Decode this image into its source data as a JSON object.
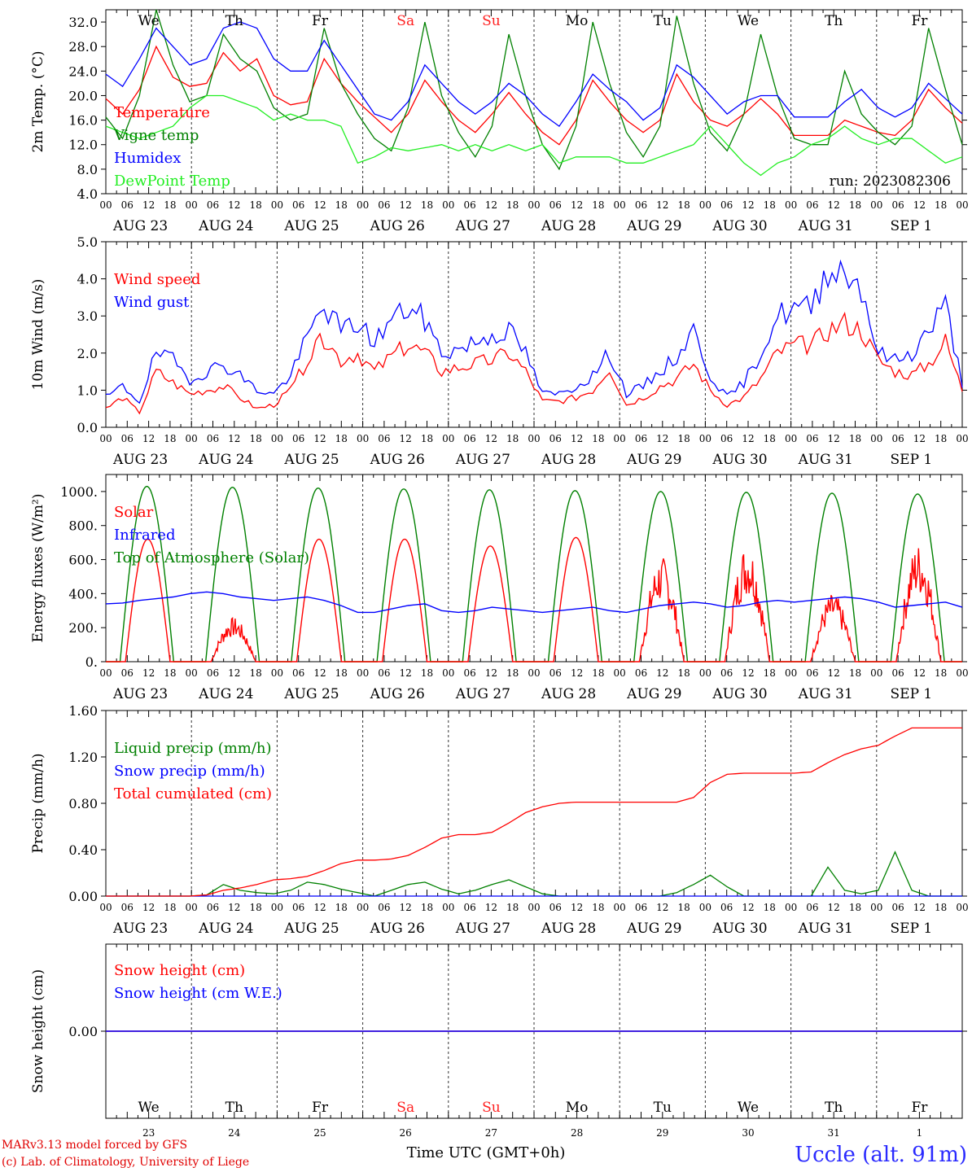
{
  "footer": {
    "model": "MARv3.13 model forced by GFS",
    "credit": "(c) Lab. of Climatology, University of Liege",
    "time_axis": "Time UTC (GMT+0h)",
    "station": "Uccle (alt. 91m)"
  },
  "days": {
    "dates": [
      "AUG 23",
      "AUG 24",
      "AUG 25",
      "AUG 26",
      "AUG 27",
      "AUG 28",
      "AUG 29",
      "AUG 30",
      "AUG 31",
      "SEP  1"
    ],
    "weekdays": [
      "We",
      "Th",
      "Fr",
      "Sa",
      "Su",
      "Mo",
      "Tu",
      "We",
      "Th",
      "Fr"
    ],
    "weekday_colors": [
      "#000000",
      "#000000",
      "#000000",
      "#ff2020",
      "#ff2020",
      "#000000",
      "#000000",
      "#000000",
      "#000000",
      "#000000"
    ],
    "day_numbers": [
      "23",
      "24",
      "25",
      "26",
      "27",
      "28",
      "29",
      "30",
      "31",
      "1"
    ],
    "hour_ticks": [
      "00",
      "06",
      "12",
      "18"
    ],
    "end_tick": "00"
  },
  "chart_data": [
    {
      "type": "line",
      "ylabel": "2m Temp. (°C)",
      "ylim": [
        4,
        34
      ],
      "yticks": [
        "4.0",
        "8.0",
        "12.0",
        "16.0",
        "20.0",
        "24.0",
        "28.0",
        "32.0"
      ],
      "annotation": "run: 2023082306",
      "series": [
        {
          "name": "Temperature",
          "color": "#ff0000",
          "values": [
            19.5,
            17,
            21,
            28,
            23,
            21.5,
            22,
            27,
            24,
            26,
            20,
            18.5,
            19,
            26,
            22,
            19,
            16.5,
            14,
            17,
            22.5,
            19,
            16,
            14,
            17,
            20.5,
            17,
            14,
            12,
            16,
            22.5,
            19,
            16,
            14,
            16,
            23.5,
            19,
            16,
            15,
            17,
            19.5,
            17,
            13.5,
            13.5,
            13.5,
            16,
            15,
            14,
            13.5,
            16,
            21,
            18,
            15.5
          ]
        },
        {
          "name": "Vigne temp",
          "color": "#008000",
          "values": [
            16.5,
            13,
            20,
            34,
            25,
            19,
            20,
            30,
            26,
            24,
            18,
            16,
            17,
            31,
            22,
            17,
            13,
            11,
            18,
            32,
            20,
            14,
            10,
            15,
            30,
            20,
            12,
            8,
            15,
            32,
            22,
            14,
            10,
            15,
            33,
            22,
            14,
            11,
            17,
            30,
            20,
            13,
            12,
            12,
            24,
            17,
            14,
            12,
            15,
            31,
            21,
            12
          ]
        },
        {
          "name": "Humidex",
          "color": "#0000ff",
          "values": [
            23.5,
            21.5,
            26,
            31,
            28,
            25,
            26,
            31,
            32,
            31,
            26,
            24,
            24,
            29,
            25,
            21,
            17,
            16,
            19,
            25,
            22,
            19,
            17,
            19,
            22,
            20,
            17,
            15,
            19,
            23.5,
            21,
            19,
            16,
            18,
            25,
            23,
            20,
            17,
            19,
            20,
            20,
            16.5,
            16.5,
            16.5,
            19,
            21,
            18,
            16.5,
            18,
            22,
            19.5,
            17
          ]
        },
        {
          "name": "DewPoint Temp",
          "color": "#22ee22",
          "values": [
            15,
            14,
            13,
            14,
            15,
            18,
            20,
            20,
            19,
            18,
            16,
            17,
            16,
            16,
            15,
            9,
            10,
            11.5,
            11,
            11.5,
            12,
            11,
            12,
            11,
            12,
            11,
            12,
            9,
            10,
            10,
            10,
            9,
            9,
            10,
            11,
            12,
            15,
            12,
            9,
            7,
            9,
            10,
            12,
            13,
            15,
            13,
            12,
            13,
            13,
            11,
            9,
            10
          ]
        }
      ]
    },
    {
      "type": "line",
      "ylabel": "10m Wind (m/s)",
      "ylim": [
        0,
        5
      ],
      "yticks": [
        "0.0",
        "1.0",
        "2.0",
        "3.0",
        "4.0",
        "5.0"
      ],
      "series": [
        {
          "name": "Wind speed",
          "color": "#ff0000",
          "values": [
            0.5,
            0.8,
            0.4,
            1.5,
            1.2,
            0.9,
            1.0,
            1.1,
            0.8,
            0.5,
            0.6,
            1.0,
            1.8,
            2.4,
            1.8,
            2.0,
            1.5,
            1.9,
            2.2,
            2.0,
            1.5,
            1.6,
            1.7,
            1.8,
            2.0,
            1.5,
            0.7,
            0.7,
            0.8,
            1.0,
            1.6,
            0.6,
            0.8,
            1.1,
            1.3,
            1.7,
            1.0,
            0.6,
            0.8,
            1.3,
            2.0,
            2.2,
            2.2,
            2.6,
            2.8,
            2.6,
            1.8,
            1.5,
            1.4,
            1.7,
            2.3,
            1.0
          ]
        },
        {
          "name": "Wind gust",
          "color": "#0000ff",
          "values": [
            0.8,
            1.1,
            0.7,
            2.0,
            1.8,
            1.3,
            1.5,
            1.7,
            1.4,
            1.0,
            0.9,
            1.4,
            2.4,
            3.3,
            2.6,
            2.8,
            2.3,
            2.9,
            3.2,
            2.9,
            2.0,
            2.1,
            2.3,
            2.5,
            2.6,
            2.0,
            0.9,
            0.9,
            1.1,
            1.4,
            2.0,
            0.9,
            1.1,
            1.5,
            1.9,
            2.6,
            1.4,
            0.8,
            1.2,
            2.0,
            3.0,
            3.2,
            3.2,
            4.3,
            4.2,
            3.8,
            2.0,
            1.8,
            2.0,
            2.6,
            3.3,
            1.2
          ]
        }
      ]
    },
    {
      "type": "line",
      "ylabel": "Energy fluxes (W/m²)",
      "ylim": [
        0,
        1100
      ],
      "yticks": [
        "0.",
        "200.",
        "400.",
        "600.",
        "800.",
        "1000."
      ],
      "series": [
        {
          "name": "Solar",
          "color": "#ff0000",
          "day_peaks": [
            720,
            260,
            720,
            720,
            680,
            730,
            620,
            700,
            400,
            700
          ]
        },
        {
          "name": "Infrared",
          "color": "#0000ff",
          "values": [
            340,
            345,
            360,
            370,
            380,
            400,
            410,
            400,
            380,
            370,
            360,
            370,
            380,
            360,
            330,
            290,
            290,
            310,
            330,
            340,
            300,
            290,
            300,
            320,
            310,
            300,
            290,
            300,
            310,
            320,
            300,
            290,
            310,
            330,
            340,
            350,
            340,
            320,
            330,
            350,
            360,
            350,
            360,
            370,
            380,
            370,
            350,
            320,
            330,
            340,
            350,
            320
          ]
        },
        {
          "name": "Top of Atmosphere (Solar)",
          "color": "#008000",
          "day_peaks": [
            1030,
            1025,
            1020,
            1015,
            1010,
            1005,
            1000,
            995,
            990,
            985
          ]
        }
      ]
    },
    {
      "type": "line",
      "ylabel": "Precip (mm/h)",
      "ylim": [
        0,
        1.6
      ],
      "yticks": [
        "0.00",
        "0.40",
        "0.80",
        "1.20",
        "1.60"
      ],
      "series": [
        {
          "name": "Liquid precip (mm/h)",
          "color": "#008000",
          "values": [
            0,
            0,
            0,
            0,
            0,
            0,
            0.01,
            0.1,
            0.05,
            0.03,
            0.02,
            0.05,
            0.12,
            0.1,
            0.06,
            0.03,
            0,
            0.05,
            0.1,
            0.12,
            0.06,
            0.02,
            0.05,
            0.1,
            0.14,
            0.08,
            0.02,
            0,
            0,
            0,
            0,
            0,
            0,
            0,
            0.03,
            0.1,
            0.18,
            0.08,
            0,
            0,
            0,
            0,
            0,
            0.25,
            0.05,
            0.02,
            0.05,
            0.38,
            0.05,
            0,
            0,
            0
          ]
        },
        {
          "name": "Snow precip (mm/h)",
          "color": "#0000ff",
          "values": [
            0,
            0,
            0,
            0,
            0,
            0,
            0,
            0,
            0,
            0,
            0,
            0,
            0,
            0,
            0,
            0,
            0,
            0,
            0,
            0,
            0,
            0,
            0,
            0,
            0,
            0,
            0,
            0,
            0,
            0,
            0,
            0,
            0,
            0,
            0,
            0,
            0,
            0,
            0,
            0,
            0,
            0,
            0,
            0,
            0,
            0,
            0,
            0,
            0,
            0,
            0,
            0
          ]
        },
        {
          "name": "Total cumulated (cm)",
          "color": "#ff0000",
          "values": [
            0,
            0,
            0,
            0,
            0,
            0,
            0.01,
            0.05,
            0.07,
            0.1,
            0.14,
            0.15,
            0.17,
            0.22,
            0.28,
            0.31,
            0.31,
            0.32,
            0.35,
            0.42,
            0.5,
            0.53,
            0.53,
            0.55,
            0.63,
            0.72,
            0.77,
            0.8,
            0.81,
            0.81,
            0.81,
            0.81,
            0.81,
            0.81,
            0.81,
            0.85,
            0.98,
            1.05,
            1.06,
            1.06,
            1.06,
            1.06,
            1.07,
            1.15,
            1.22,
            1.27,
            1.3,
            1.38,
            1.45,
            1.45,
            1.45,
            1.45
          ]
        }
      ]
    },
    {
      "type": "line",
      "ylabel": "Snow height (cm)",
      "ylim": [
        -1,
        1
      ],
      "yticks": [
        "0.00"
      ],
      "series": [
        {
          "name": "Snow height (cm)",
          "color": "#ff0000",
          "values": [
            0,
            0
          ]
        },
        {
          "name": "Snow height (cm W.E.)",
          "color": "#0000ff",
          "values": [
            0,
            0
          ]
        }
      ]
    }
  ]
}
